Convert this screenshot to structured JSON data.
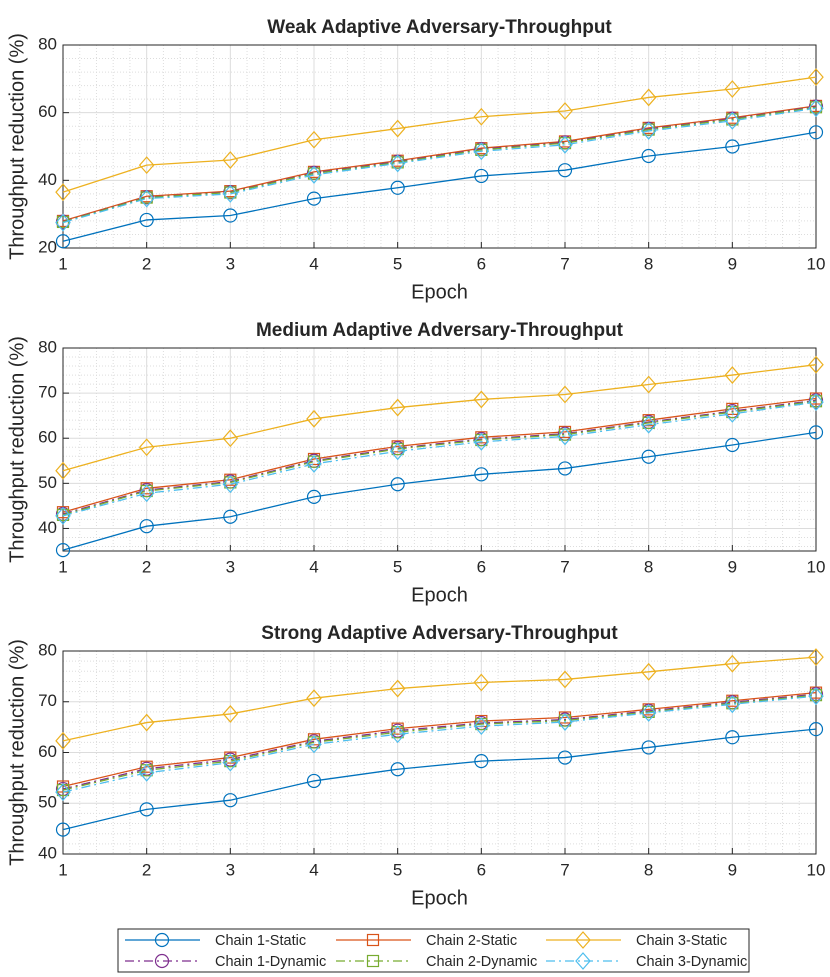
{
  "chart_data": [
    {
      "type": "line",
      "title": "Weak Adaptive Adversary-Throughput",
      "xlabel": "Epoch",
      "ylabel": "Throughput reduction (%)",
      "x": [
        1,
        2,
        3,
        4,
        5,
        6,
        7,
        8,
        9,
        10
      ],
      "xlim": [
        1,
        10
      ],
      "xticks": [
        1,
        2,
        3,
        4,
        5,
        6,
        7,
        8,
        9,
        10
      ],
      "ylim": [
        20,
        80
      ],
      "yticks": [
        20,
        40,
        60,
        80
      ],
      "grid": true,
      "minor_grid": true,
      "legend": "bottom",
      "series": [
        {
          "name": "Chain 1-Static",
          "color": "#0072bd",
          "marker": "circle",
          "linestyle": "solid",
          "values": [
            22,
            28.3,
            29.6,
            34.6,
            37.8,
            41.3,
            43,
            47.2,
            50,
            54.2
          ]
        },
        {
          "name": "Chain 2-Static",
          "color": "#d95319",
          "marker": "square",
          "linestyle": "solid",
          "values": [
            28,
            35.3,
            36.8,
            42.5,
            45.8,
            49.5,
            51.5,
            55.5,
            58.5,
            62
          ]
        },
        {
          "name": "Chain 3-Static",
          "color": "#edb120",
          "marker": "diamond",
          "linestyle": "solid",
          "values": [
            36.5,
            44.5,
            46,
            52,
            55.3,
            58.8,
            60.5,
            64.5,
            67,
            70.5
          ]
        },
        {
          "name": "Chain 1-Dynamic",
          "color": "#7e2f8e",
          "marker": "circle",
          "linestyle": "dashdot",
          "values": [
            27.8,
            35,
            36.5,
            42.2,
            45.5,
            49.2,
            51.2,
            55.2,
            58.2,
            61.8
          ]
        },
        {
          "name": "Chain 2-Dynamic",
          "color": "#77ac30",
          "marker": "square",
          "linestyle": "dashdot",
          "values": [
            27.7,
            34.9,
            36.4,
            42,
            45.3,
            49,
            51,
            55,
            58,
            61.6
          ]
        },
        {
          "name": "Chain 3-Dynamic",
          "color": "#4dbeee",
          "marker": "diamond",
          "linestyle": "dashdot",
          "values": [
            27.5,
            34.6,
            36,
            41.6,
            45,
            48.6,
            50.5,
            54.6,
            57.6,
            61.3
          ]
        }
      ]
    },
    {
      "type": "line",
      "title": "Medium Adaptive Adversary-Throughput",
      "xlabel": "Epoch",
      "ylabel": "Throughput reduction (%)",
      "x": [
        1,
        2,
        3,
        4,
        5,
        6,
        7,
        8,
        9,
        10
      ],
      "xlim": [
        1,
        10
      ],
      "xticks": [
        1,
        2,
        3,
        4,
        5,
        6,
        7,
        8,
        9,
        10
      ],
      "ylim": [
        35,
        80
      ],
      "yticks": [
        40,
        50,
        60,
        70,
        80
      ],
      "grid": true,
      "minor_grid": true,
      "series": [
        {
          "color": "#0072bd",
          "marker": "circle",
          "linestyle": "solid",
          "values": [
            35.2,
            40.5,
            42.6,
            47,
            49.8,
            52,
            53.3,
            55.9,
            58.5,
            61.3
          ]
        },
        {
          "color": "#d95319",
          "marker": "square",
          "linestyle": "solid",
          "values": [
            43.6,
            48.9,
            50.8,
            55.4,
            58.2,
            60.2,
            61.4,
            64,
            66.5,
            68.8
          ]
        },
        {
          "color": "#edb120",
          "marker": "diamond",
          "linestyle": "solid",
          "values": [
            52.8,
            58,
            60,
            64.3,
            66.8,
            68.6,
            69.7,
            71.9,
            74,
            76.3
          ]
        },
        {
          "color": "#7e2f8e",
          "marker": "circle",
          "linestyle": "dashdot",
          "values": [
            43.2,
            48.5,
            50.4,
            55,
            57.8,
            59.8,
            61,
            63.6,
            66,
            68.4
          ]
        },
        {
          "color": "#77ac30",
          "marker": "square",
          "linestyle": "dashdot",
          "values": [
            43,
            48.3,
            50.2,
            54.8,
            57.6,
            59.6,
            60.8,
            63.4,
            65.8,
            68.2
          ]
        },
        {
          "color": "#4dbeee",
          "marker": "diamond",
          "linestyle": "dashdot",
          "values": [
            42.8,
            47.8,
            49.8,
            54.3,
            57.1,
            59.2,
            60.4,
            63,
            65.4,
            68
          ]
        }
      ]
    },
    {
      "type": "line",
      "title": "Strong Adaptive Adversary-Throughput",
      "xlabel": "Epoch",
      "ylabel": "Throughput reduction (%)",
      "x": [
        1,
        2,
        3,
        4,
        5,
        6,
        7,
        8,
        9,
        10
      ],
      "xlim": [
        1,
        10
      ],
      "xticks": [
        1,
        2,
        3,
        4,
        5,
        6,
        7,
        8,
        9,
        10
      ],
      "ylim": [
        40,
        80
      ],
      "yticks": [
        40,
        50,
        60,
        70,
        80
      ],
      "grid": true,
      "minor_grid": true,
      "series": [
        {
          "color": "#0072bd",
          "marker": "circle",
          "linestyle": "solid",
          "values": [
            44.8,
            48.8,
            50.6,
            54.4,
            56.7,
            58.3,
            59,
            61,
            63,
            64.6
          ]
        },
        {
          "color": "#d95319",
          "marker": "square",
          "linestyle": "solid",
          "values": [
            53.3,
            57.2,
            59,
            62.6,
            64.7,
            66.2,
            66.9,
            68.5,
            70.2,
            71.8
          ]
        },
        {
          "color": "#edb120",
          "marker": "diamond",
          "linestyle": "solid",
          "values": [
            62.3,
            65.9,
            67.6,
            70.7,
            72.6,
            73.8,
            74.4,
            75.9,
            77.5,
            78.8
          ]
        },
        {
          "color": "#7e2f8e",
          "marker": "circle",
          "linestyle": "dashdot",
          "values": [
            52.8,
            56.8,
            58.6,
            62.2,
            64.3,
            65.8,
            66.5,
            68.2,
            69.9,
            71.5
          ]
        },
        {
          "color": "#77ac30",
          "marker": "square",
          "linestyle": "dashdot",
          "values": [
            52.6,
            56.5,
            58.3,
            62,
            64,
            65.6,
            66.3,
            68,
            69.7,
            71.3
          ]
        },
        {
          "color": "#4dbeee",
          "marker": "diamond",
          "linestyle": "dashdot",
          "values": [
            52.2,
            56,
            58,
            61.6,
            63.6,
            65.2,
            66,
            67.8,
            69.5,
            71.1
          ]
        }
      ]
    }
  ]
}
